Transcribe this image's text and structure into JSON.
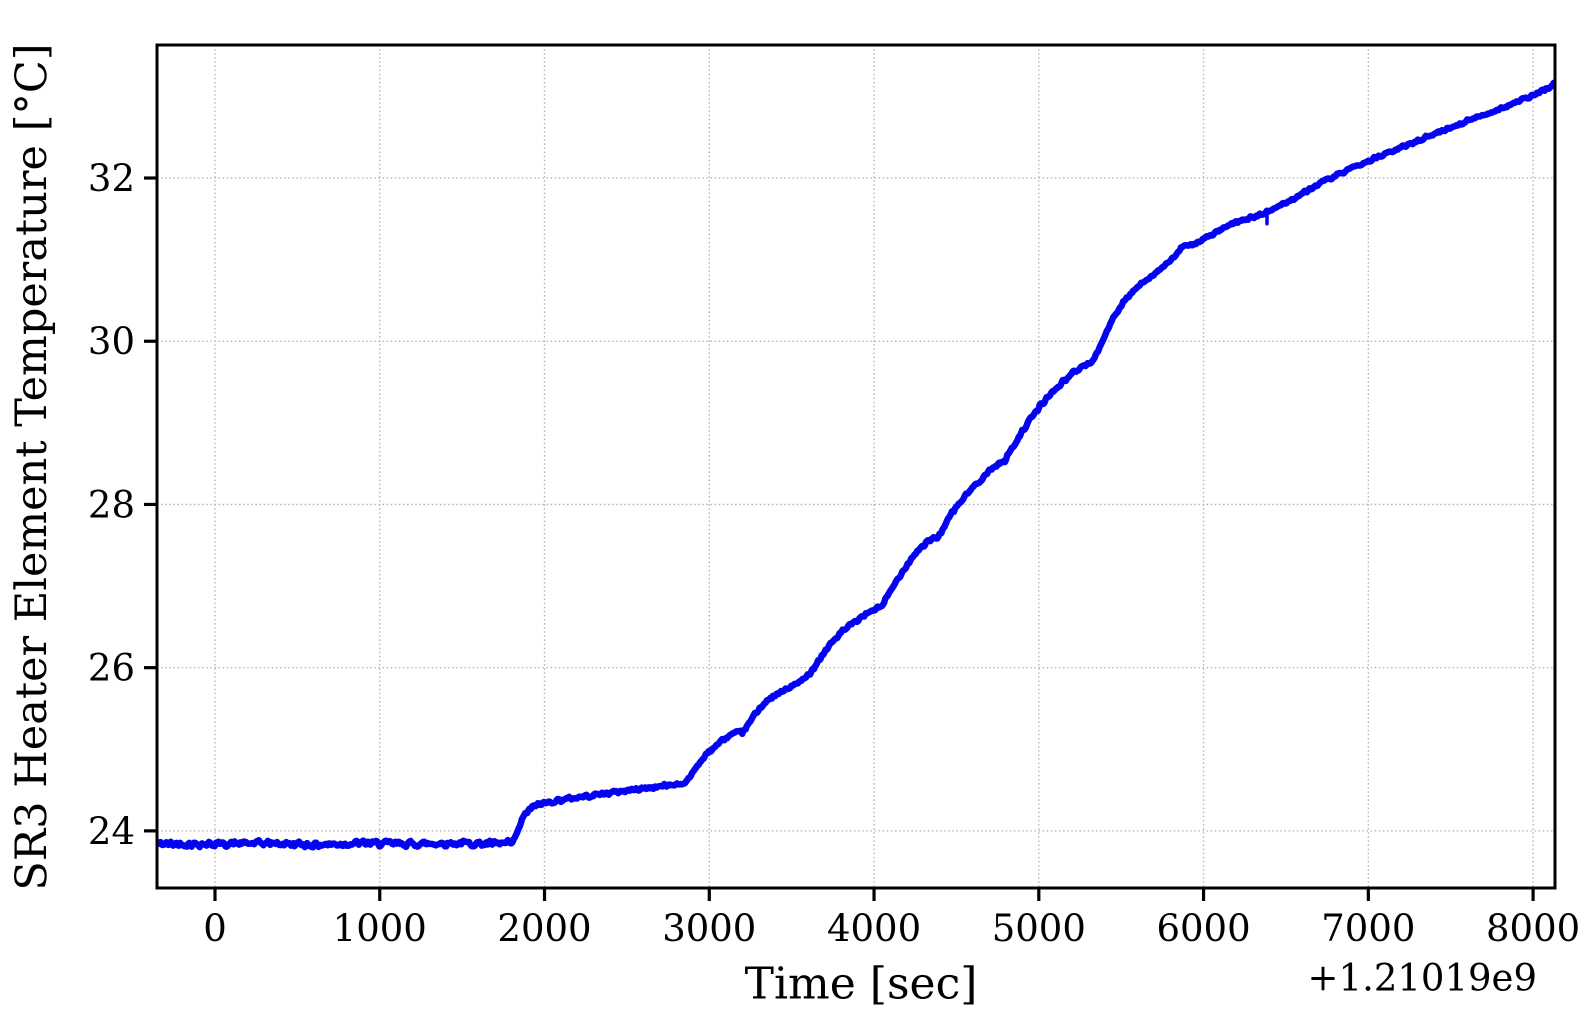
{
  "chart_data": {
    "type": "line",
    "title": "",
    "xlabel": "Time [sec]",
    "ylabel": "SR3 Heater Element Temperature [°C]",
    "x_offset_label": "+1.21019e9",
    "xlim": [
      -352,
      8133
    ],
    "ylim": [
      23.3,
      33.63
    ],
    "xticks": [
      0,
      1000,
      2000,
      3000,
      4000,
      5000,
      6000,
      7000,
      8000
    ],
    "xtick_labels": [
      "0",
      "1000",
      "2000",
      "3000",
      "4000",
      "5000",
      "6000",
      "7000",
      "8000"
    ],
    "yticks": [
      24,
      26,
      28,
      30,
      32
    ],
    "ytick_labels": [
      "24",
      "26",
      "28",
      "30",
      "32"
    ],
    "grid": "dotted",
    "grid_color": "#b0b0b0",
    "line_color": "#0404f0",
    "axis_color": "#000000",
    "legend": "none",
    "series": [
      {
        "name": "SR3 heater element temperature",
        "points": [
          [
            -352,
            23.84
          ],
          [
            0,
            23.84
          ],
          [
            300,
            23.85
          ],
          [
            600,
            23.83
          ],
          [
            900,
            23.85
          ],
          [
            1200,
            23.84
          ],
          [
            1500,
            23.85
          ],
          [
            1700,
            23.84
          ],
          [
            1805,
            23.85
          ],
          [
            1835,
            23.98
          ],
          [
            1862,
            24.13
          ],
          [
            1888,
            24.22
          ],
          [
            1925,
            24.29
          ],
          [
            1975,
            24.33
          ],
          [
            2100,
            24.38
          ],
          [
            2300,
            24.44
          ],
          [
            2520,
            24.5
          ],
          [
            2720,
            24.55
          ],
          [
            2860,
            24.59
          ],
          [
            2900,
            24.72
          ],
          [
            2945,
            24.85
          ],
          [
            2995,
            24.96
          ],
          [
            3050,
            25.06
          ],
          [
            3095,
            25.13
          ],
          [
            3135,
            25.18
          ],
          [
            3200,
            25.21
          ],
          [
            3235,
            25.29
          ],
          [
            3270,
            25.41
          ],
          [
            3315,
            25.53
          ],
          [
            3380,
            25.63
          ],
          [
            3435,
            25.7
          ],
          [
            3510,
            25.78
          ],
          [
            3590,
            25.88
          ],
          [
            3615,
            25.95
          ],
          [
            3640,
            26.02
          ],
          [
            3685,
            26.15
          ],
          [
            3735,
            26.29
          ],
          [
            3795,
            26.42
          ],
          [
            3870,
            26.54
          ],
          [
            3950,
            26.65
          ],
          [
            4000,
            26.71
          ],
          [
            4048,
            26.76
          ],
          [
            4068,
            26.83
          ],
          [
            4090,
            26.9
          ],
          [
            4145,
            27.09
          ],
          [
            4205,
            27.28
          ],
          [
            4262,
            27.43
          ],
          [
            4312,
            27.52
          ],
          [
            4348,
            27.57
          ],
          [
            4390,
            27.6
          ],
          [
            4408,
            27.67
          ],
          [
            4430,
            27.74
          ],
          [
            4460,
            27.85
          ],
          [
            4485,
            27.93
          ],
          [
            4545,
            28.08
          ],
          [
            4605,
            28.22
          ],
          [
            4665,
            28.34
          ],
          [
            4722,
            28.45
          ],
          [
            4762,
            28.51
          ],
          [
            4795,
            28.53
          ],
          [
            4812,
            28.61
          ],
          [
            4835,
            28.68
          ],
          [
            4885,
            28.85
          ],
          [
            4945,
            29.03
          ],
          [
            5005,
            29.2
          ],
          [
            5075,
            29.36
          ],
          [
            5150,
            29.51
          ],
          [
            5220,
            29.63
          ],
          [
            5262,
            29.69
          ],
          [
            5318,
            29.73
          ],
          [
            5345,
            29.83
          ],
          [
            5378,
            29.96
          ],
          [
            5412,
            30.12
          ],
          [
            5452,
            30.28
          ],
          [
            5512,
            30.47
          ],
          [
            5572,
            30.61
          ],
          [
            5642,
            30.74
          ],
          [
            5722,
            30.86
          ],
          [
            5780,
            30.95
          ],
          [
            5825,
            31.04
          ],
          [
            5862,
            31.14
          ],
          [
            5932,
            31.19
          ],
          [
            6000,
            31.25
          ],
          [
            6100,
            31.36
          ],
          [
            6200,
            31.46
          ],
          [
            6300,
            31.52
          ],
          [
            6385,
            31.58
          ],
          [
            6450,
            31.65
          ],
          [
            6550,
            31.75
          ],
          [
            6650,
            31.87
          ],
          [
            6720,
            31.95
          ],
          [
            6850,
            32.07
          ],
          [
            7000,
            32.21
          ],
          [
            7150,
            32.33
          ],
          [
            7300,
            32.46
          ],
          [
            7450,
            32.58
          ],
          [
            7600,
            32.7
          ],
          [
            7750,
            32.81
          ],
          [
            7900,
            32.93
          ],
          [
            8010,
            33.02
          ],
          [
            8070,
            33.08
          ],
          [
            8133,
            33.16
          ]
        ]
      }
    ],
    "anomaly_spike": {
      "t": 6385,
      "temp_from": 31.58,
      "temp_to": 31.44
    }
  }
}
